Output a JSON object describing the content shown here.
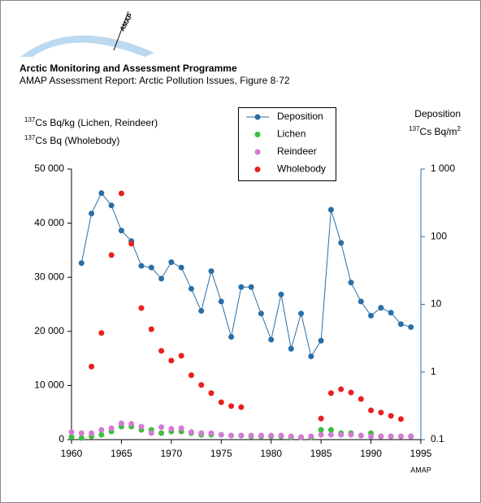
{
  "header": {
    "logo": "AMAP",
    "title": "Arctic Monitoring and Assessment Programme",
    "subtitle": "AMAP Assessment Report: Arctic Pollution Issues, Figure 8·72"
  },
  "footer": "AMAP",
  "chart_data": {
    "type": "line",
    "y_label_lines": [
      {
        "sup": "137",
        "text": "Cs Bq/kg (Lichen, Reindeer)"
      },
      {
        "sup": "137",
        "text": "Cs Bq (Wholebody)"
      }
    ],
    "y2_label_lines": [
      {
        "text": "Deposition"
      },
      {
        "sup": "137",
        "text": "Cs Bq/m",
        "sup2": "2"
      }
    ],
    "x": [
      1960,
      1961,
      1962,
      1963,
      1964,
      1965,
      1966,
      1967,
      1968,
      1969,
      1970,
      1971,
      1972,
      1973,
      1974,
      1975,
      1976,
      1977,
      1978,
      1979,
      1980,
      1981,
      1982,
      1983,
      1984,
      1985,
      1986,
      1987,
      1988,
      1989,
      1990,
      1991,
      1992,
      1993,
      1994
    ],
    "xlim": [
      1960,
      1995
    ],
    "xticks": [
      1960,
      1965,
      1970,
      1975,
      1980,
      1985,
      1990,
      1995
    ],
    "ylim": [
      0,
      50000
    ],
    "yticks": [
      0,
      {
        "value": 10000,
        "label": "10 000"
      },
      {
        "value": 20000,
        "label": "20 000"
      },
      {
        "value": 30000,
        "label": "30 000"
      },
      {
        "value": 40000,
        "label": "40 000"
      },
      {
        "value": 50000,
        "label": "50 000"
      }
    ],
    "y2lim": [
      0.1,
      1000
    ],
    "y2log": true,
    "y2ticks": [
      0.1,
      1,
      10,
      100,
      {
        "value": 1000,
        "label": "1 000"
      }
    ],
    "series": [
      {
        "name": "Deposition",
        "color": "#2a6ea6",
        "axis": "y2",
        "line": true,
        "values": [
          null,
          40.7,
          220,
          440,
          290,
          123,
          86,
          37,
          35,
          24,
          42,
          35,
          17,
          8,
          31,
          11,
          3.3,
          18,
          18,
          7.3,
          3,
          14,
          2.2,
          7.3,
          1.7,
          2.9,
          250,
          81,
          21,
          11,
          6.8,
          8.9,
          7.5,
          5.1,
          4.6
        ]
      },
      {
        "name": "Lichen",
        "color": "#3cbf3c",
        "line": false,
        "values": [
          500,
          300,
          600,
          900,
          1500,
          2400,
          2400,
          1800,
          1800,
          1200,
          1500,
          1500,
          1200,
          900,
          900,
          900,
          750,
          750,
          600,
          600,
          600,
          600,
          450,
          450,
          450,
          1800,
          1800,
          1200,
          1200,
          750,
          1200,
          600,
          600,
          600,
          600
        ]
      },
      {
        "name": "Reindeer",
        "color": "#d47ad4",
        "line": false,
        "values": [
          1400,
          1200,
          1200,
          1800,
          2100,
          3000,
          2900,
          2400,
          1200,
          2300,
          2000,
          2100,
          1400,
          1200,
          1200,
          900,
          750,
          750,
          750,
          750,
          750,
          750,
          600,
          450,
          600,
          900,
          900,
          900,
          900,
          750,
          600,
          600,
          600,
          600,
          600
        ]
      },
      {
        "name": "Wholebody",
        "color": "#e8201e",
        "line": false,
        "values": [
          null,
          null,
          13500,
          19700,
          34100,
          45500,
          36200,
          24300,
          20400,
          16400,
          14600,
          15500,
          11900,
          10100,
          8600,
          6900,
          6200,
          6000,
          null,
          null,
          null,
          null,
          null,
          null,
          null,
          3900,
          8600,
          9300,
          8700,
          7500,
          5400,
          5000,
          4400,
          3800,
          null
        ]
      }
    ]
  }
}
